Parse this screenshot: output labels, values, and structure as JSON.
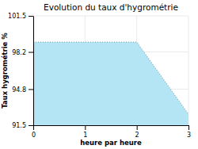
{
  "chart_data": {
    "type": "area",
    "title": "Evolution du taux d'hygrométrie",
    "x_label": "heure par heure",
    "y_label": "Taux hygrométrie %",
    "x": [
      0,
      2,
      3
    ],
    "values": [
      99.1,
      99.1,
      92.5
    ],
    "color": "#b3e5f5",
    "line_style": "dotted",
    "xlim": [
      0,
      3
    ],
    "ylim": [
      91.5,
      101.5
    ],
    "xticks": [
      0,
      1,
      2,
      3
    ],
    "yticks": [
      91.5,
      94.8,
      98.2,
      101.5
    ],
    "grid": true
  }
}
